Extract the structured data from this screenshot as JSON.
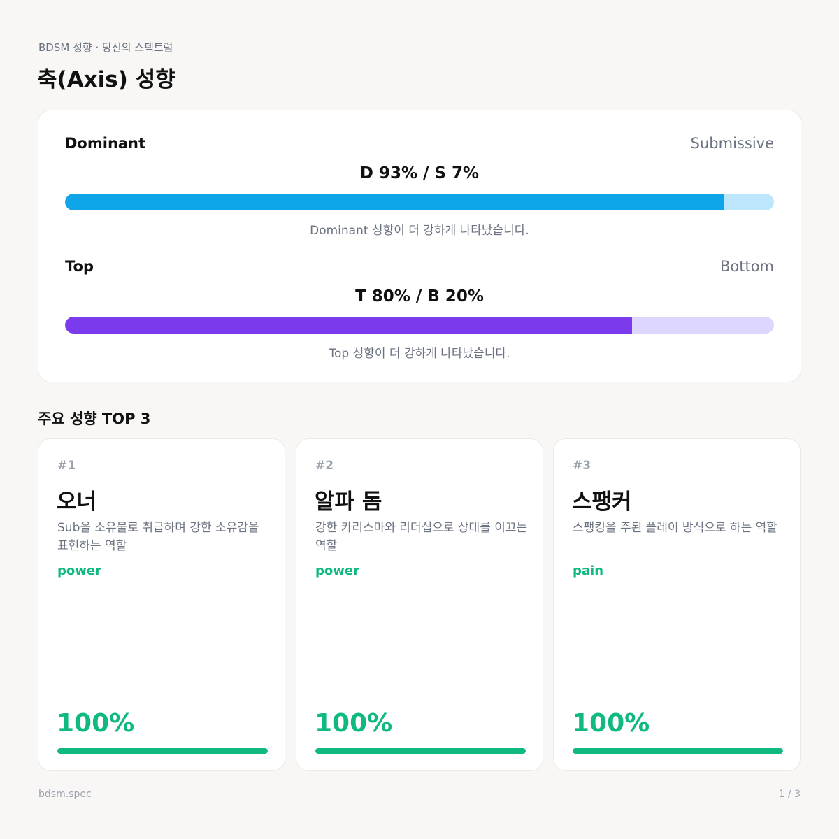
{
  "header": {
    "subtitle": "BDSM 성향 · 당신의 스펙트럼",
    "title": "축(Axis) 성향"
  },
  "axes": [
    {
      "left_label": "Dominant",
      "right_label": "Submissive",
      "score_text": "D 93% / S 7%",
      "left_percent": 93,
      "note": "Dominant 성향이 더 강하게 나타났습니다.",
      "fill_color": "#0ea5e9",
      "track_color": "#bde5fb"
    },
    {
      "left_label": "Top",
      "right_label": "Bottom",
      "score_text": "T 80% / B 20%",
      "left_percent": 80,
      "note": "Top 성향이 더 강하게 나타났습니다.",
      "fill_color": "#7c3aed",
      "track_color": "#ddd6fe"
    }
  ],
  "top_traits": {
    "title": "주요 성향 TOP 3",
    "items": [
      {
        "rank": "#1",
        "name": "오너",
        "description": "Sub을 소유물로 취급하며 강한 소유감을 표현하는 역할",
        "tag": "power",
        "percent_text": "100%",
        "percent": 100
      },
      {
        "rank": "#2",
        "name": "알파 돔",
        "description": "강한 카리스마와 리더십으로 상대를 이끄는 역할",
        "tag": "power",
        "percent_text": "100%",
        "percent": 100
      },
      {
        "rank": "#3",
        "name": "스팽커",
        "description": "스팽킹을 주된 플레이 방식으로 하는 역할",
        "tag": "pain",
        "percent_text": "100%",
        "percent": 100
      }
    ]
  },
  "footer": {
    "brand": "bdsm.spec",
    "page": "1 / 3"
  },
  "colors": {
    "accent_green": "#10b981",
    "background": "#f8f7f5"
  }
}
